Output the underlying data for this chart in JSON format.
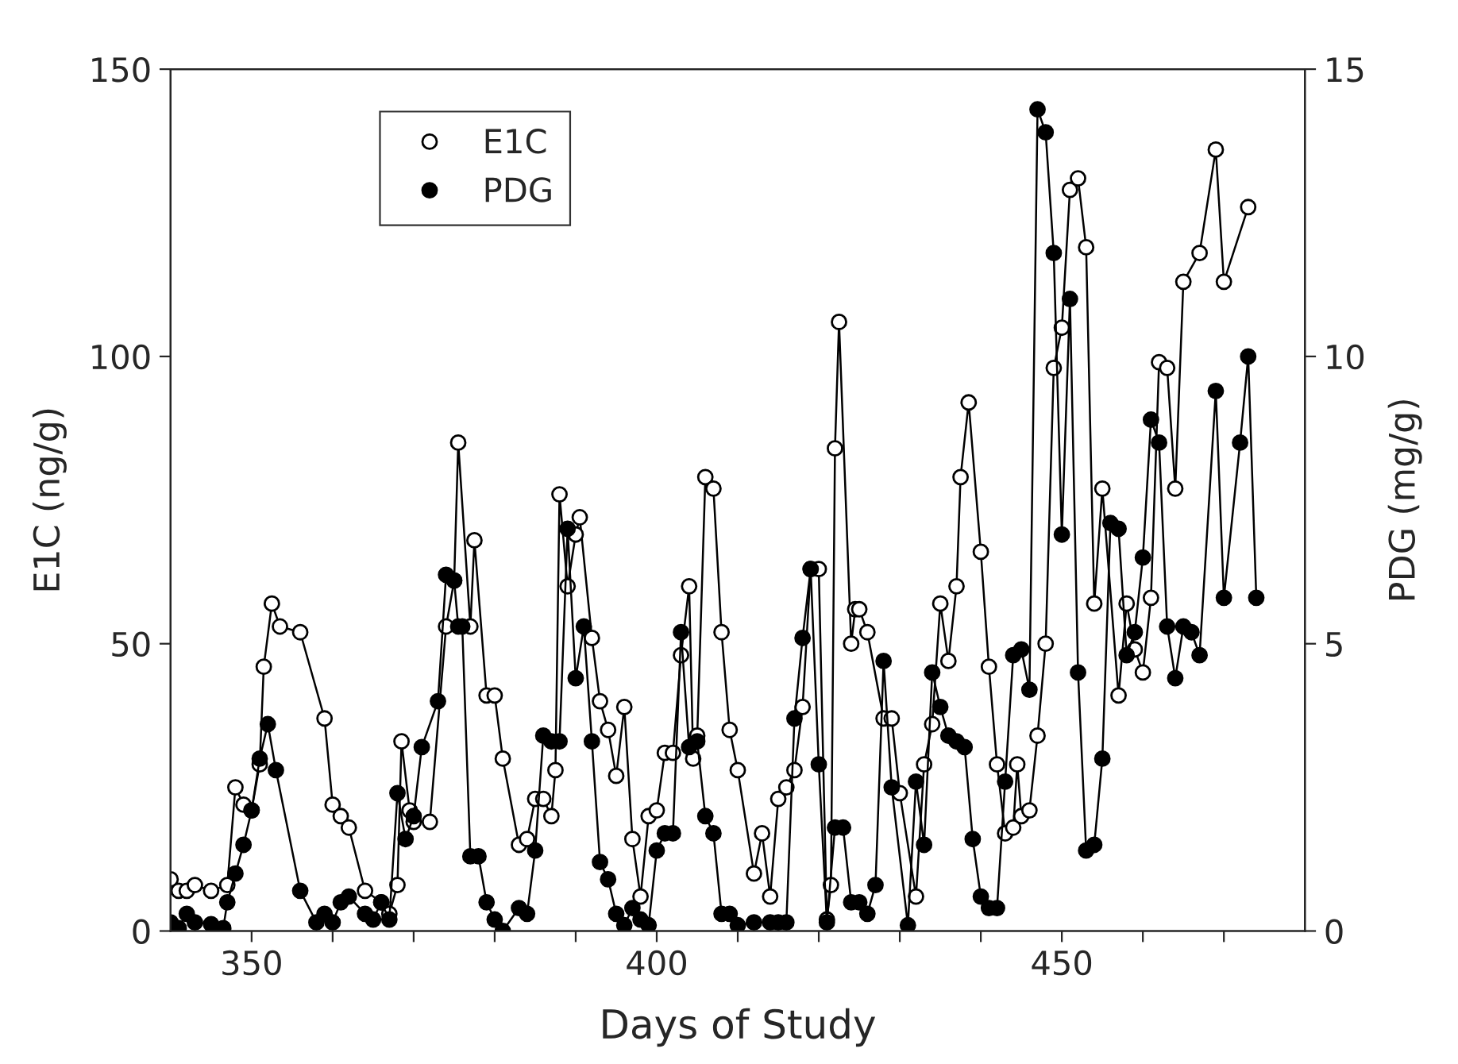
{
  "chart_data": {
    "type": "line",
    "xlabel": "Days of Study",
    "ylabel": "E1C (ng/g)",
    "y2label": "PDG (mg/g)",
    "xlim": [
      340,
      480
    ],
    "xticks": [
      350,
      {
        "value": 360,
        "label": null
      },
      {
        "value": 370,
        "label": null
      },
      {
        "value": 380,
        "label": null
      },
      {
        "value": 390,
        "label": null
      },
      400,
      {
        "value": 410,
        "label": null
      },
      {
        "value": 420,
        "label": null
      },
      {
        "value": 430,
        "label": null
      },
      {
        "value": 440,
        "label": null
      },
      450,
      {
        "value": 460,
        "label": null
      },
      {
        "value": 470,
        "label": null
      }
    ],
    "ylim": [
      0,
      150
    ],
    "yticks": [
      0,
      50,
      100,
      150
    ],
    "y2lim": [
      0,
      15
    ],
    "y2ticks": [
      0,
      5,
      10,
      15
    ],
    "marker": "circle",
    "line_style": "solid",
    "grid": false,
    "legend": "top left",
    "series": [
      {
        "name": "E1C",
        "color": "#ffffff",
        "x": [
          340,
          341,
          342,
          343,
          345,
          347,
          348,
          349,
          350,
          351,
          351.5,
          352.5,
          353.5,
          356,
          359,
          360,
          361,
          362,
          364,
          366,
          367,
          368,
          368.5,
          369.5,
          370,
          372,
          374,
          375,
          375.5,
          377,
          377.5,
          379,
          380,
          381,
          383,
          384,
          385,
          386,
          387,
          387.5,
          388,
          389,
          390,
          390.5,
          392,
          393,
          394,
          395,
          396,
          397,
          398,
          399,
          400,
          401,
          402,
          403,
          404,
          404.5,
          405,
          406,
          407,
          408,
          409,
          410,
          412,
          413,
          414,
          415,
          416,
          417,
          418,
          419,
          420,
          421,
          421.5,
          422,
          422.5,
          424,
          424.5,
          425,
          426,
          428,
          429,
          430,
          432,
          433,
          434,
          435,
          436,
          437,
          437.5,
          438.5,
          440,
          441,
          442,
          443,
          444,
          444.5,
          445,
          446,
          447,
          448,
          449,
          450,
          451,
          452,
          453,
          454,
          455,
          457,
          458,
          459,
          460,
          461,
          462,
          463,
          464,
          465,
          467,
          469,
          470,
          473
        ],
        "values": [
          9,
          7,
          7,
          8,
          7,
          8,
          25,
          22,
          21,
          29,
          46,
          57,
          53,
          52,
          37,
          22,
          20,
          18,
          7,
          5,
          3,
          8,
          33,
          21,
          19,
          19,
          53,
          61,
          85,
          53,
          68,
          41,
          41,
          30,
          15,
          16,
          23,
          23,
          20,
          28,
          76,
          60,
          69,
          72,
          51,
          40,
          35,
          27,
          39,
          16,
          6,
          20,
          21,
          31,
          31,
          48,
          60,
          30,
          34,
          79,
          77,
          52,
          35,
          28,
          10,
          17,
          6,
          23,
          25,
          28,
          39,
          63,
          63,
          2,
          8,
          84,
          106,
          50,
          56,
          56,
          52,
          37,
          37,
          24,
          6,
          29,
          36,
          57,
          47,
          60,
          79,
          92,
          66,
          46,
          29,
          17,
          18,
          29,
          20,
          21,
          34,
          50,
          98,
          105,
          129,
          131,
          119,
          57,
          77,
          41,
          57,
          49,
          45,
          58,
          99,
          98,
          77,
          113,
          118,
          136,
          113,
          126
        ]
      },
      {
        "name": "PDG",
        "color": "#000000",
        "axis": "y2",
        "x": [
          340,
          341,
          342,
          343,
          345,
          346.5,
          347,
          348,
          349,
          350,
          351,
          352,
          353,
          356,
          358,
          359,
          360,
          361,
          362,
          364,
          365,
          366,
          367,
          368,
          369,
          370,
          371,
          373,
          374,
          375,
          375.5,
          376,
          377,
          378,
          379,
          380,
          381,
          383,
          384,
          385,
          386,
          387,
          388,
          389,
          390,
          391,
          392,
          393,
          394,
          395,
          396,
          397,
          398,
          399,
          400,
          401,
          402,
          403,
          404,
          405,
          406,
          407,
          408,
          409,
          410,
          412,
          414,
          415,
          416,
          417,
          418,
          419,
          420,
          421,
          422,
          423,
          424,
          425,
          426,
          427,
          428,
          429,
          431,
          432,
          433,
          434,
          435,
          436,
          437,
          438,
          439,
          440,
          441,
          442,
          443,
          444,
          445,
          446,
          447,
          448,
          449,
          450,
          451,
          452,
          453,
          454,
          455,
          456,
          457,
          458,
          459,
          460,
          461,
          462,
          463,
          464,
          465,
          466,
          467,
          469,
          470,
          472,
          473,
          474
        ],
        "values": [
          0.15,
          0.05,
          0.3,
          0.15,
          0.12,
          0.05,
          0.5,
          1.0,
          1.5,
          2.1,
          3.0,
          3.6,
          2.8,
          0.7,
          0.15,
          0.3,
          0.15,
          0.5,
          0.6,
          0.3,
          0.2,
          0.5,
          0.2,
          2.4,
          1.6,
          2.0,
          3.2,
          4.0,
          6.2,
          6.1,
          5.3,
          5.3,
          1.3,
          1.3,
          0.5,
          0.2,
          0,
          0.4,
          0.3,
          1.4,
          3.4,
          3.3,
          3.3,
          7.0,
          4.4,
          5.3,
          3.3,
          1.2,
          0.9,
          0.3,
          0.1,
          0.4,
          0.2,
          0.1,
          1.4,
          1.7,
          1.7,
          5.2,
          3.2,
          3.3,
          2.0,
          1.7,
          0.3,
          0.3,
          0.1,
          0.15,
          0.15,
          0.15,
          0.15,
          3.7,
          5.1,
          6.3,
          2.9,
          0.15,
          1.8,
          1.8,
          0.5,
          0.5,
          0.3,
          0.8,
          4.7,
          2.5,
          0.1,
          2.6,
          1.5,
          4.5,
          3.9,
          3.4,
          3.3,
          3.2,
          1.6,
          0.6,
          0.4,
          0.4,
          2.6,
          4.8,
          4.9,
          4.2,
          14.3,
          13.9,
          11.8,
          6.9,
          11.0,
          4.5,
          1.4,
          1.5,
          3.0,
          7.1,
          7.0,
          4.8,
          5.2,
          6.5,
          8.9,
          8.5,
          5.3,
          4.4,
          5.3,
          5.2,
          4.8,
          9.4,
          5.8,
          8.5,
          10.0,
          5.8
        ]
      }
    ]
  }
}
